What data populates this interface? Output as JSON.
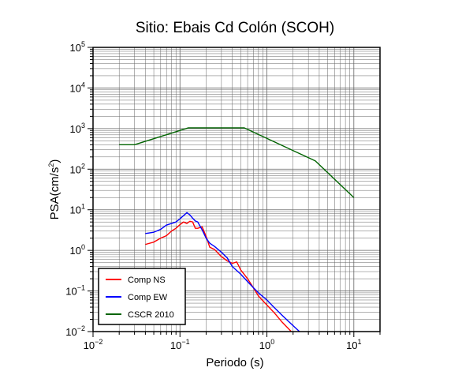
{
  "chart_data": {
    "type": "line",
    "title": "Sitio: Ebais Cd Colón (SCOH)",
    "xlabel": "Periodo (s)",
    "ylabel_main": "PSA(cm/s",
    "ylabel_exp": "2",
    "ylabel_close": ")",
    "x_scale": "log",
    "y_scale": "log",
    "xlim": [
      0.01,
      20
    ],
    "ylim": [
      0.01,
      100000
    ],
    "grid": true,
    "x_ticks": [
      {
        "base": "10",
        "exp": "−2",
        "value": 0.01
      },
      {
        "base": "10",
        "exp": "−1",
        "value": 0.1
      },
      {
        "base": "10",
        "exp": "0",
        "value": 1
      },
      {
        "base": "10",
        "exp": "1",
        "value": 10
      }
    ],
    "y_ticks": [
      {
        "base": "10",
        "exp": "−2",
        "value": 0.01
      },
      {
        "base": "10",
        "exp": "−1",
        "value": 0.1
      },
      {
        "base": "10",
        "exp": "0",
        "value": 1
      },
      {
        "base": "10",
        "exp": "1",
        "value": 10
      },
      {
        "base": "10",
        "exp": "2",
        "value": 100
      },
      {
        "base": "10",
        "exp": "3",
        "value": 1000
      },
      {
        "base": "10",
        "exp": "4",
        "value": 10000
      },
      {
        "base": "10",
        "exp": "5",
        "value": 100000
      }
    ],
    "legend_position": "bottom-left",
    "series": [
      {
        "name": "Comp NS",
        "color": "#ff0000",
        "x": [
          0.04,
          0.05,
          0.06,
          0.07,
          0.08,
          0.09,
          0.1,
          0.11,
          0.12,
          0.13,
          0.14,
          0.15,
          0.16,
          0.18,
          0.2,
          0.22,
          0.25,
          0.3,
          0.35,
          0.4,
          0.45,
          0.5,
          0.6,
          0.7,
          0.8,
          1.0,
          1.2,
          1.5,
          2.0,
          2.5
        ],
        "y": [
          1.4,
          1.6,
          2.0,
          2.3,
          3.0,
          3.5,
          4.3,
          5.0,
          4.6,
          5.2,
          5.0,
          3.5,
          3.5,
          3.8,
          2.2,
          1.2,
          1.05,
          0.7,
          0.55,
          0.48,
          0.52,
          0.33,
          0.2,
          0.12,
          0.075,
          0.045,
          0.03,
          0.017,
          0.009,
          0.005
        ]
      },
      {
        "name": "Comp EW",
        "color": "#0000ff",
        "x": [
          0.04,
          0.05,
          0.06,
          0.07,
          0.08,
          0.09,
          0.1,
          0.11,
          0.12,
          0.13,
          0.14,
          0.15,
          0.16,
          0.18,
          0.2,
          0.22,
          0.25,
          0.3,
          0.35,
          0.4,
          0.5,
          0.6,
          0.7,
          0.8,
          1.0,
          1.2,
          1.5,
          2.0,
          2.5
        ],
        "y": [
          2.6,
          2.8,
          3.3,
          4.2,
          4.6,
          5.0,
          6.0,
          7.2,
          8.5,
          7.5,
          6.2,
          5.3,
          5.0,
          3.2,
          2.0,
          1.5,
          1.25,
          0.9,
          0.65,
          0.4,
          0.26,
          0.17,
          0.12,
          0.09,
          0.06,
          0.04,
          0.025,
          0.014,
          0.009
        ]
      },
      {
        "name": "CSCR 2010",
        "color": "#006400",
        "x": [
          0.02,
          0.03,
          0.125,
          0.55,
          3.6,
          10
        ],
        "y": [
          400,
          400,
          1040,
          1040,
          160,
          20
        ]
      }
    ]
  }
}
